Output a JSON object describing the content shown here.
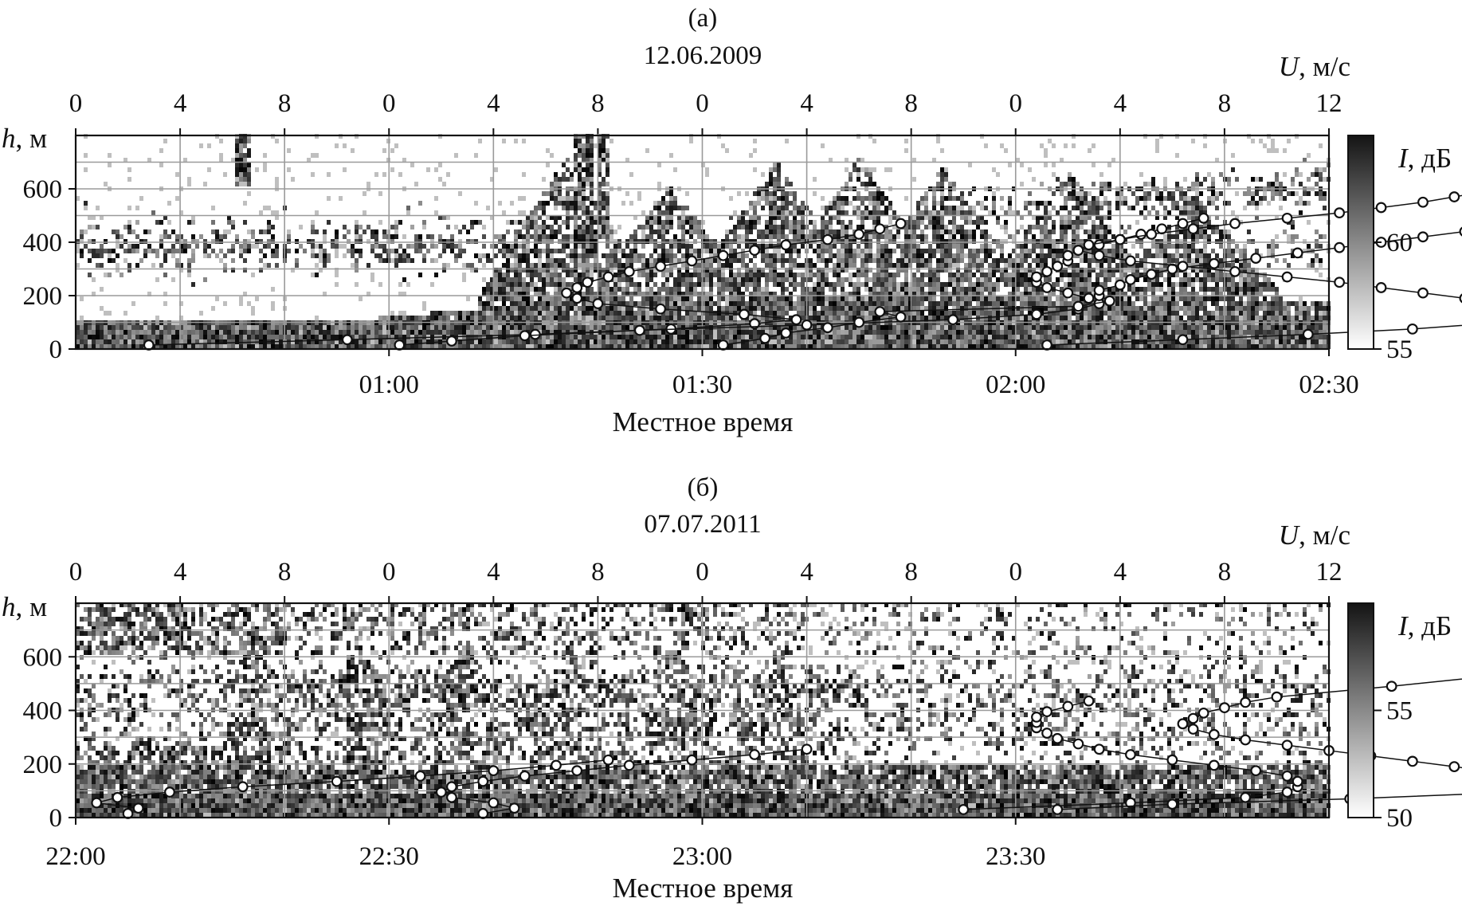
{
  "chart_data": [
    {
      "type": "heatmap",
      "panel_label": "(а)",
      "date": "12.06.2009",
      "top_axis": {
        "label_var": "U",
        "label_unit": ", м/с",
        "tick_labels": [
          "0",
          "4",
          "8",
          "0",
          "4",
          "8",
          "0",
          "4",
          "8",
          "0",
          "4",
          "8",
          "12"
        ]
      },
      "y_axis": {
        "label_var": "h",
        "label_unit": ", м",
        "ticks": [
          0,
          200,
          400,
          600
        ],
        "range": [
          0,
          800
        ]
      },
      "x_axis": {
        "label": "Местное время",
        "ticks": [
          "01:00",
          "01:30",
          "02:00",
          "02:30"
        ],
        "range_minutes": [
          30,
          150
        ]
      },
      "colorbar": {
        "label_var": "I",
        "label_unit": ", дБ",
        "ticks": [
          "55",
          "60"
        ],
        "range": [
          55,
          65
        ]
      },
      "grid": true,
      "wind_profiles": [
        {
          "offset": 0,
          "points": [
            [
              0.7,
              15
            ],
            [
              2.6,
              35
            ],
            [
              4.4,
              55
            ],
            [
              5.7,
              75
            ],
            [
              6.5,
              95
            ],
            [
              6.9,
              110
            ],
            [
              6.4,
              130
            ],
            [
              5.6,
              150
            ],
            [
              5.0,
              170
            ],
            [
              4.8,
              190
            ],
            [
              4.7,
              210
            ],
            [
              4.8,
              230
            ],
            [
              4.9,
              250
            ],
            [
              5.1,
              270
            ],
            [
              5.3,
              290
            ],
            [
              5.6,
              310
            ],
            [
              5.9,
              330
            ],
            [
              6.2,
              350
            ],
            [
              6.5,
              370
            ],
            [
              6.8,
              390
            ],
            [
              7.2,
              410
            ],
            [
              7.5,
              430
            ],
            [
              7.7,
              450
            ],
            [
              7.9,
              470
            ]
          ]
        },
        {
          "offset": 3,
          "points": [
            [
              0.1,
              15
            ],
            [
              0.6,
              30
            ],
            [
              1.3,
              50
            ],
            [
              2.4,
              70
            ],
            [
              4.0,
              90
            ],
            [
              5.4,
              110
            ],
            [
              6.2,
              130
            ],
            [
              6.6,
              150
            ],
            [
              6.8,
              170
            ],
            [
              6.7,
              190
            ],
            [
              6.5,
              210
            ],
            [
              6.3,
              230
            ],
            [
              6.2,
              250
            ],
            [
              6.2,
              270
            ],
            [
              6.3,
              290
            ],
            [
              6.4,
              310
            ],
            [
              6.5,
              330
            ],
            [
              6.5,
              350
            ],
            [
              6.6,
              370
            ],
            [
              6.8,
              390
            ],
            [
              7.0,
              410
            ],
            [
              7.2,
              430
            ],
            [
              7.4,
              450
            ],
            [
              7.6,
              470
            ],
            [
              7.8,
              490
            ]
          ]
        },
        {
          "offset": 6,
          "points": [
            [
              0.2,
              15
            ],
            [
              0.6,
              40
            ],
            [
              0.8,
              60
            ],
            [
              1.2,
              80
            ],
            [
              1.5,
              100
            ],
            [
              1.9,
              120
            ],
            [
              1.7,
              140
            ],
            [
              3.6,
              160
            ],
            [
              3.9,
              180
            ],
            [
              3.8,
              200
            ],
            [
              3.8,
              220
            ],
            [
              4.0,
              240
            ],
            [
              4.1,
              260
            ],
            [
              4.3,
              280
            ],
            [
              4.5,
              300
            ],
            [
              4.9,
              320
            ],
            [
              5.3,
              340
            ],
            [
              5.7,
              360
            ],
            [
              6.1,
              380
            ],
            [
              6.5,
              400
            ],
            [
              6.9,
              420
            ],
            [
              7.3,
              440
            ]
          ]
        },
        {
          "offset": 9,
          "points": [
            [
              0.3,
              15
            ],
            [
              1.6,
              35
            ],
            [
              2.8,
              55
            ],
            [
              3.8,
              75
            ],
            [
              4.5,
              95
            ],
            [
              5.2,
              115
            ],
            [
              5.2,
              130
            ],
            [
              4.9,
              150
            ],
            [
              4.6,
              170
            ],
            [
              4.3,
              190
            ],
            [
              3.9,
              210
            ],
            [
              3.5,
              230
            ],
            [
              3.1,
              250
            ],
            [
              2.6,
              270
            ],
            [
              2.1,
              290
            ],
            [
              1.6,
              310
            ],
            [
              1.1,
              330
            ],
            [
              0.8,
              350
            ],
            [
              0.6,
              370
            ],
            [
              0.7,
              390
            ],
            [
              1.0,
              410
            ],
            [
              1.3,
              430
            ],
            [
              1.7,
              450
            ],
            [
              2.1,
              470
            ],
            [
              2.6,
              490
            ],
            [
              3.1,
              510
            ],
            [
              3.5,
              530
            ],
            [
              3.9,
              550
            ],
            [
              4.2,
              570
            ],
            [
              4.5,
              590
            ],
            [
              4.7,
              610
            ],
            [
              4.9,
              630
            ],
            [
              5.0,
              650
            ],
            [
              5.1,
              670
            ]
          ]
        }
      ]
    },
    {
      "type": "heatmap",
      "panel_label": "(б)",
      "date": "07.07.2011",
      "top_axis": {
        "label_var": "U",
        "label_unit": ", м/с",
        "tick_labels": [
          "0",
          "4",
          "8",
          "0",
          "4",
          "8",
          "0",
          "4",
          "8",
          "0",
          "4",
          "8",
          "12"
        ]
      },
      "y_axis": {
        "label_var": "h",
        "label_unit": ", м",
        "ticks": [
          0,
          200,
          400,
          600
        ],
        "range": [
          0,
          800
        ]
      },
      "x_axis": {
        "label": "Местное время",
        "ticks": [
          "22:00",
          "22:30",
          "23:00",
          "23:30"
        ],
        "range_minutes": [
          0,
          120
        ]
      },
      "colorbar": {
        "label_var": "I",
        "label_unit": ", дБ",
        "ticks": [
          "50",
          "55"
        ],
        "range": [
          50,
          60
        ]
      },
      "grid": true,
      "wind_profiles": [
        {
          "offset": 0,
          "points": [
            [
              0.5,
              15
            ],
            [
              0.6,
              35
            ],
            [
              0.2,
              55
            ],
            [
              0.4,
              75
            ],
            [
              0.9,
              95
            ],
            [
              1.6,
              115
            ],
            [
              2.5,
              135
            ],
            [
              3.3,
              155
            ],
            [
              4.0,
              175
            ],
            [
              4.6,
              195
            ],
            [
              5.1,
              215
            ]
          ]
        },
        {
          "offset": 3,
          "points": [
            [
              0.9,
              15
            ],
            [
              1.2,
              35
            ],
            [
              1.0,
              55
            ],
            [
              0.6,
              75
            ],
            [
              0.5,
              95
            ],
            [
              0.6,
              115
            ],
            [
              0.9,
              135
            ],
            [
              1.3,
              155
            ],
            [
              1.8,
              175
            ],
            [
              2.3,
              195
            ],
            [
              2.9,
              215
            ],
            [
              3.5,
              235
            ],
            [
              4.0,
              255
            ]
          ]
        },
        {
          "offset": 6,
          "points": [
            [
              2.5,
              30
            ],
            [
              4.1,
              55
            ],
            [
              5.2,
              75
            ],
            [
              5.6,
              95
            ],
            [
              5.7,
              115
            ],
            [
              5.7,
              135
            ],
            [
              5.6,
              155
            ],
            [
              5.3,
              175
            ],
            [
              4.9,
              195
            ],
            [
              4.5,
              215
            ],
            [
              4.1,
              235
            ],
            [
              3.8,
              255
            ],
            [
              3.6,
              275
            ],
            [
              3.4,
              295
            ],
            [
              3.3,
              315
            ],
            [
              3.2,
              335
            ],
            [
              3.2,
              355
            ],
            [
              3.2,
              375
            ],
            [
              3.3,
              395
            ],
            [
              3.5,
              415
            ],
            [
              3.7,
              435
            ]
          ]
        },
        {
          "offset": 9,
          "points": [
            [
              0.4,
              30
            ],
            [
              1.5,
              50
            ],
            [
              3.2,
              70
            ],
            [
              4.5,
              90
            ],
            [
              4.7,
              110
            ],
            [
              4.9,
              130
            ],
            [
              4.9,
              150
            ],
            [
              4.6,
              170
            ],
            [
              4.2,
              190
            ],
            [
              3.8,
              210
            ],
            [
              3.4,
              230
            ],
            [
              3.0,
              250
            ],
            [
              2.6,
              270
            ],
            [
              2.2,
              290
            ],
            [
              1.9,
              310
            ],
            [
              1.7,
              330
            ],
            [
              1.6,
              350
            ],
            [
              1.7,
              370
            ],
            [
              1.8,
              390
            ],
            [
              2.0,
              410
            ],
            [
              2.2,
              430
            ],
            [
              2.5,
              450
            ],
            [
              3.6,
              490
            ],
            [
              4.6,
              530
            ]
          ]
        }
      ]
    }
  ]
}
